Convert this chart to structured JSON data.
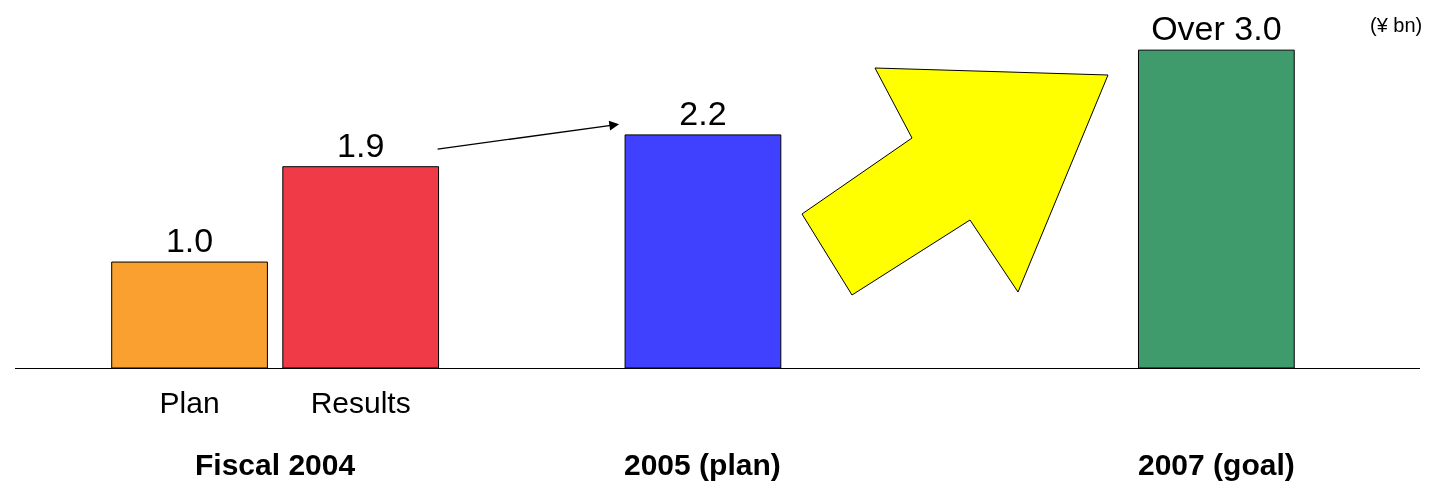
{
  "chart_data": {
    "type": "bar",
    "categories": [
      "Plan",
      "Results",
      null,
      null,
      null,
      null,
      null
    ],
    "values": [
      1.0,
      1.9,
      null,
      2.2,
      null,
      null,
      3.0
    ],
    "colors": [
      "#f9a030",
      "#f03a48",
      null,
      "#4040ff",
      null,
      null,
      "#3f9a6c"
    ],
    "value_labels": [
      "1.0",
      "1.9",
      null,
      "2.2",
      null,
      null,
      "Over 3.0"
    ],
    "annotations": [
      "Fiscal 2004",
      "2005 (plan)",
      "2007 (goal)",
      "(¥ bn)"
    ],
    "grid": false
  }
}
